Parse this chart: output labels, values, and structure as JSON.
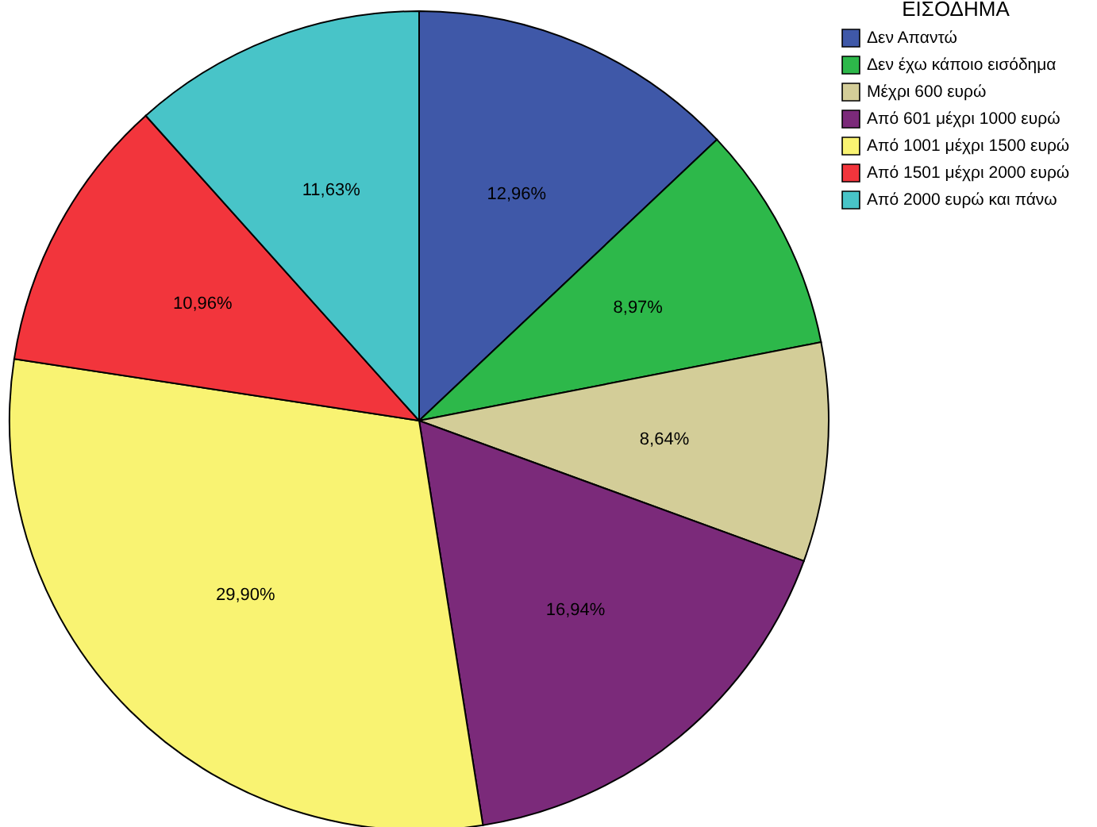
{
  "chart_data": {
    "type": "pie",
    "legend_title": "ΕΙΣΟΔΗΜΑ",
    "legend": "top right",
    "categories": [
      "Δεν Απαντώ",
      "Δεν έχω κάποιο εισόδημα",
      "Μέχρι 600 ευρώ",
      "Από 601 μέχρι 1000 ευρώ",
      "Από 1001 μέχρι 1500 ευρώ",
      "Από 1501 μέχρι 2000 ευρώ",
      "Από 2000 ευρώ και πάνω"
    ],
    "values": [
      12.96,
      8.97,
      8.64,
      16.94,
      29.9,
      10.96,
      11.63
    ],
    "value_labels": [
      "12,96%",
      "8,97%",
      "8,64%",
      "16,94%",
      "29,90%",
      "10,96%",
      "11,63%"
    ],
    "colors": [
      "#3f58a8",
      "#2db84a",
      "#d3cd98",
      "#7b2a7a",
      "#f9f372",
      "#f2353c",
      "#48c4c8"
    ]
  }
}
